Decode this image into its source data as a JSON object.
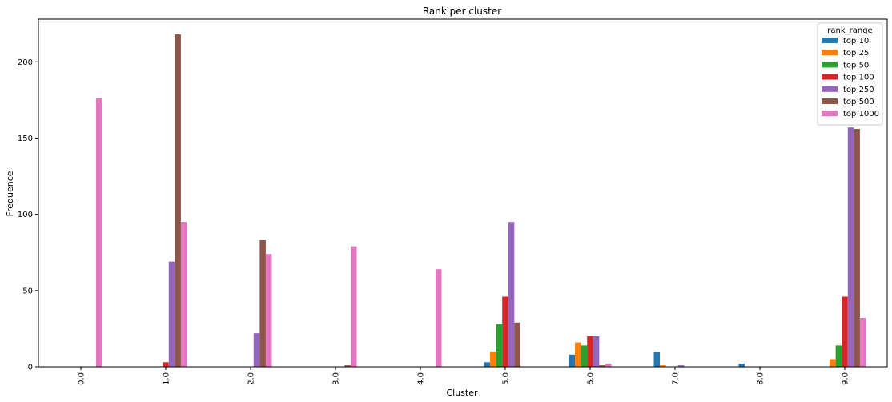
{
  "chart_data": {
    "type": "bar",
    "title": "Rank per cluster",
    "xlabel": "Cluster",
    "ylabel": "Frequence",
    "ylim": [
      0,
      228
    ],
    "yticks": [
      0,
      50,
      100,
      150,
      200
    ],
    "categories": [
      "0.0",
      "1.0",
      "2.0",
      "3.0",
      "4.0",
      "5.0",
      "6.0",
      "7.0",
      "8.0",
      "9.0"
    ],
    "legend": {
      "title": "rank_range",
      "position": "top-right"
    },
    "series": [
      {
        "name": "top 10",
        "color": "#1f77b4",
        "values": [
          0,
          0,
          0,
          0,
          0,
          3,
          8,
          10,
          2,
          0
        ]
      },
      {
        "name": "top 25",
        "color": "#ff7f0e",
        "values": [
          0,
          0,
          0,
          0,
          0,
          10,
          16,
          1,
          0,
          5
        ]
      },
      {
        "name": "top 50",
        "color": "#2ca02c",
        "values": [
          0,
          0,
          0,
          0,
          0,
          28,
          14,
          0,
          0,
          14
        ]
      },
      {
        "name": "top 100",
        "color": "#d62728",
        "values": [
          0,
          3,
          0,
          0,
          0,
          46,
          20,
          0,
          0,
          46
        ]
      },
      {
        "name": "top 250",
        "color": "#9467bd",
        "values": [
          0,
          69,
          22,
          0,
          0,
          95,
          20,
          1,
          0,
          157
        ]
      },
      {
        "name": "top 500",
        "color": "#8c564b",
        "values": [
          0,
          218,
          83,
          1,
          0,
          29,
          1,
          0,
          0,
          156
        ]
      },
      {
        "name": "top 1000",
        "color": "#e377c2",
        "values": [
          176,
          95,
          74,
          79,
          64,
          0,
          2,
          0,
          0,
          32
        ]
      }
    ]
  }
}
